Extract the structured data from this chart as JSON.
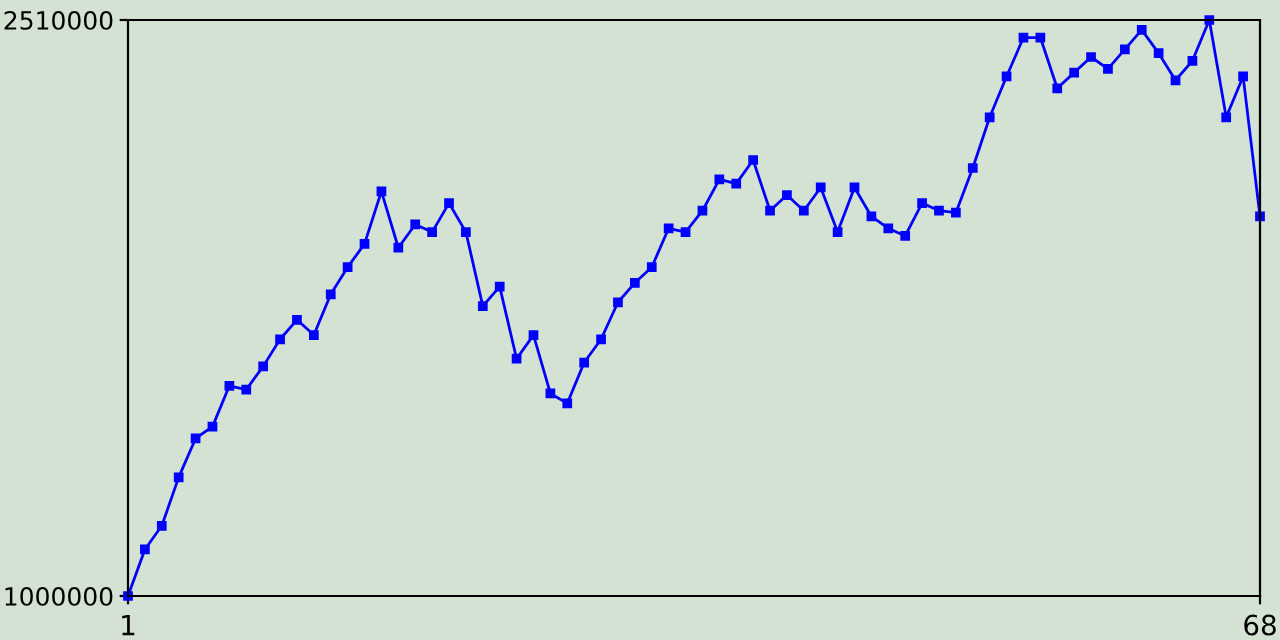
{
  "chart_data": {
    "type": "line",
    "x": [
      1,
      2,
      3,
      4,
      5,
      6,
      7,
      8,
      9,
      10,
      11,
      12,
      13,
      14,
      15,
      16,
      17,
      18,
      19,
      20,
      21,
      22,
      23,
      24,
      25,
      26,
      27,
      28,
      29,
      30,
      31,
      32,
      33,
      34,
      35,
      36,
      37,
      38,
      39,
      40,
      41,
      42,
      43,
      44,
      45,
      46,
      47,
      48,
      49,
      50,
      51,
      52,
      53,
      54,
      55,
      56,
      57,
      58,
      59,
      60,
      61,
      62,
      63,
      64,
      65,
      66,
      67,
      68
    ],
    "series": [
      {
        "color": "#0000ff",
        "values": [
          1000000,
          1122000,
          1184000,
          1311000,
          1413000,
          1444000,
          1551000,
          1541000,
          1602000,
          1673000,
          1724000,
          1684000,
          1791000,
          1862000,
          1923000,
          2061000,
          1913000,
          1974000,
          1954000,
          2030000,
          1954000,
          1760000,
          1811000,
          1622000,
          1684000,
          1531000,
          1505000,
          1612000,
          1673000,
          1770000,
          1821000,
          1862000,
          1964000,
          1954000,
          2010000,
          2092000,
          2081000,
          2143000,
          2010000,
          2051000,
          2010000,
          2071000,
          1954000,
          2071000,
          1995000,
          1964000,
          1944000,
          2030000,
          2010000,
          2005000,
          2122000,
          2255000,
          2362000,
          2464000,
          2464000,
          2331000,
          2372000,
          2413000,
          2382000,
          2433000,
          2484000,
          2423000,
          2352000,
          2403000,
          2510000,
          2255000,
          2362000,
          1995000
        ]
      }
    ],
    "xlim": [
      1,
      68
    ],
    "xticks": [
      1,
      68
    ],
    "ylim": [
      1000000,
      2510000
    ],
    "yticks": [
      1000000,
      2510000
    ],
    "marker": "square",
    "line_style": "solid",
    "grid": false,
    "legend": false
  }
}
